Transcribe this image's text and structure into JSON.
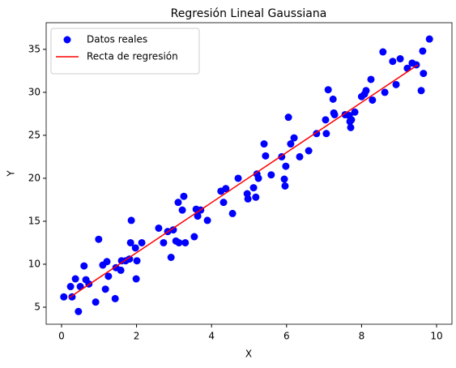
{
  "chart_data": {
    "type": "scatter",
    "title": "Regresión Lineal Gaussiana",
    "x_label": "X",
    "y_label": "Y",
    "xlim": [
      -0.41,
      10.41
    ],
    "ylim": [
      3.02,
      38.1
    ],
    "xticks": [
      0,
      2,
      4,
      6,
      8,
      10
    ],
    "yticks": [
      5,
      10,
      15,
      20,
      25,
      30,
      35
    ],
    "legend": "upper left",
    "series": [
      {
        "name": "Datos reales",
        "type": "scatter",
        "color": "#0000ff",
        "x": [
          0.06,
          0.24,
          0.28,
          0.37,
          0.45,
          0.5,
          0.6,
          0.65,
          0.73,
          0.91,
          0.99,
          1.1,
          1.17,
          1.21,
          1.25,
          1.43,
          1.45,
          1.58,
          1.6,
          1.71,
          1.81,
          1.84,
          1.86,
          1.97,
          1.99,
          2.01,
          2.14,
          2.59,
          2.72,
          2.83,
          2.92,
          2.98,
          3.05,
          3.11,
          3.13,
          3.22,
          3.26,
          3.3,
          3.54,
          3.59,
          3.63,
          3.71,
          3.89,
          4.25,
          4.32,
          4.38,
          4.56,
          4.71,
          4.95,
          4.97,
          5.12,
          5.18,
          5.21,
          5.25,
          5.4,
          5.44,
          5.59,
          5.87,
          5.94,
          5.96,
          5.98,
          6.05,
          6.11,
          6.2,
          6.35,
          6.59,
          6.8,
          7.04,
          7.06,
          7.11,
          7.24,
          7.26,
          7.28,
          7.56,
          7.67,
          7.69,
          7.71,
          7.73,
          7.82,
          8.0,
          8.08,
          8.12,
          8.25,
          8.29,
          8.57,
          8.62,
          8.83,
          8.92,
          9.03,
          9.22,
          9.35,
          9.46,
          9.59,
          9.63,
          9.65,
          9.81
        ],
        "values": [
          6.2,
          7.4,
          6.2,
          8.3,
          4.5,
          7.4,
          9.8,
          8.2,
          7.7,
          5.6,
          12.9,
          9.9,
          7.1,
          10.3,
          8.6,
          6.0,
          9.6,
          9.3,
          10.4,
          10.4,
          10.6,
          12.5,
          15.1,
          11.9,
          8.3,
          10.4,
          12.5,
          14.2,
          12.5,
          13.8,
          10.8,
          14.0,
          12.7,
          17.2,
          12.5,
          16.3,
          17.9,
          12.5,
          13.2,
          16.4,
          15.6,
          16.3,
          15.1,
          18.5,
          17.2,
          18.8,
          15.9,
          20.0,
          18.2,
          17.6,
          18.9,
          17.8,
          20.5,
          20.0,
          24.0,
          22.6,
          20.4,
          22.5,
          19.9,
          19.1,
          21.4,
          27.1,
          24.0,
          24.7,
          22.5,
          23.2,
          25.2,
          26.8,
          25.2,
          30.3,
          29.2,
          27.6,
          27.4,
          27.4,
          27.3,
          26.6,
          25.9,
          26.8,
          27.7,
          29.5,
          29.8,
          30.2,
          31.5,
          29.1,
          34.7,
          30.0,
          33.6,
          30.9,
          33.9,
          32.8,
          33.4,
          33.2,
          30.2,
          34.8,
          32.2,
          36.2
        ]
      },
      {
        "name": "Recta de regresión",
        "type": "line",
        "color": "#ff0000",
        "x": [
          0.2,
          9.5
        ],
        "values": [
          6.1,
          33.2
        ]
      }
    ]
  }
}
